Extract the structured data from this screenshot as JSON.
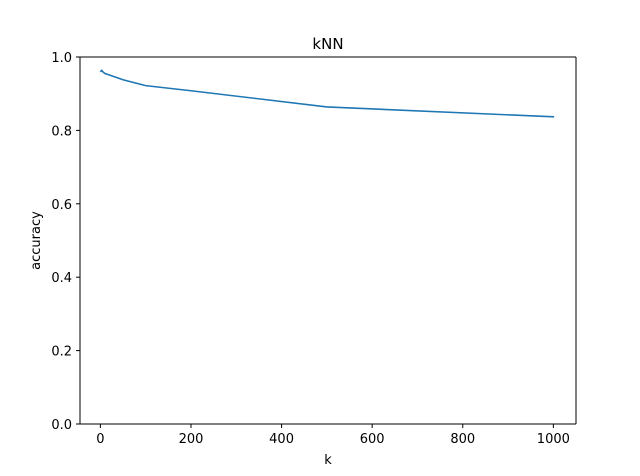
{
  "chart_data": {
    "type": "line",
    "title": "kNN",
    "xlabel": "k",
    "ylabel": "accuracy",
    "xlim": [
      -45,
      1050
    ],
    "ylim": [
      0,
      1
    ],
    "xticks": [
      0,
      200,
      400,
      600,
      800,
      1000
    ],
    "yticks": [
      0.0,
      0.2,
      0.4,
      0.6,
      0.8,
      1.0
    ],
    "xtick_labels": [
      "0",
      "200",
      "400",
      "600",
      "800",
      "1000"
    ],
    "ytick_labels": [
      "0.0",
      "0.2",
      "0.4",
      "0.6",
      "0.8",
      "1.0"
    ],
    "grid": false,
    "series": [
      {
        "color": "#1f77b4",
        "x": [
          1,
          3,
          5,
          10,
          20,
          50,
          100,
          200,
          500,
          1000
        ],
        "y": [
          0.961,
          0.964,
          0.96,
          0.955,
          0.951,
          0.938,
          0.922,
          0.908,
          0.864,
          0.837
        ]
      }
    ]
  }
}
